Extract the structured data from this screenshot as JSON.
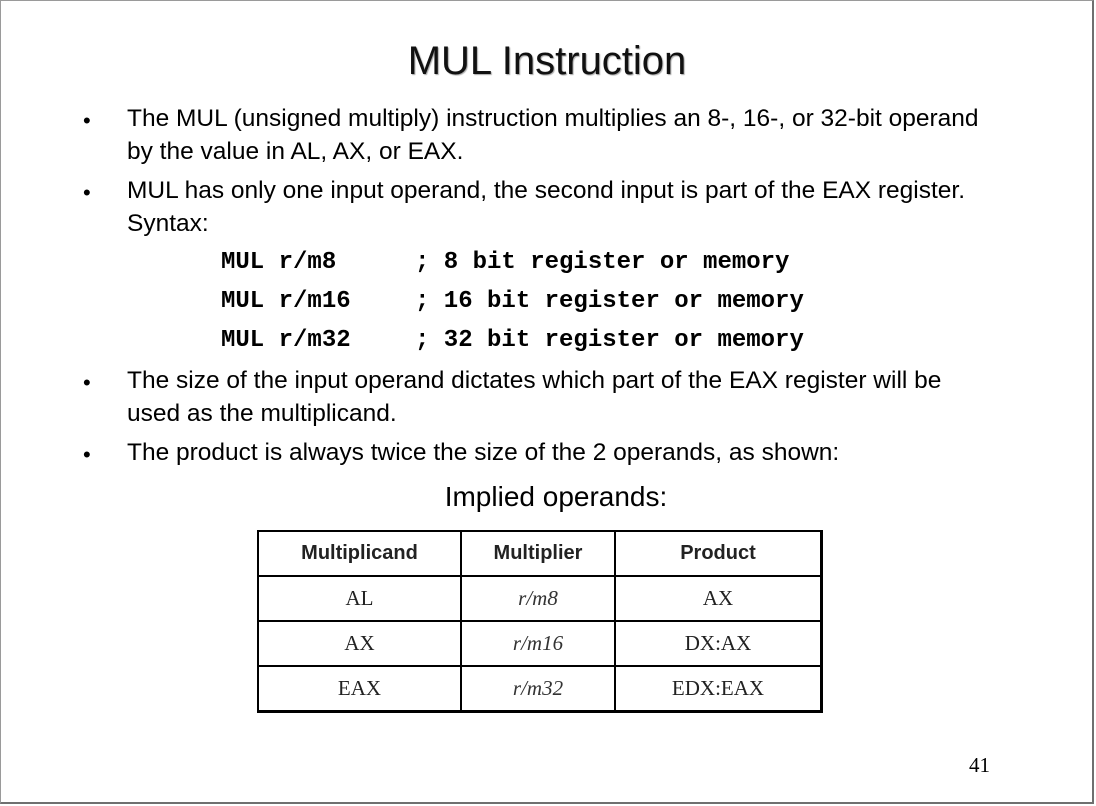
{
  "title": "MUL Instruction",
  "bullets": [
    {
      "marker": "•",
      "text": "The MUL (unsigned multiply) instruction multiplies an 8-, 16-, or 32-bit operand by the value in AL, AX, or EAX."
    },
    {
      "marker": "•",
      "text": "MUL has only one input operand, the second input is part of the EAX register.  Syntax:"
    },
    {
      "marker": "•",
      "text": "The size of the input operand dictates which part of the EAX register will be used as the multiplicand."
    },
    {
      "marker": "•",
      "text": "The product is always twice the size of the 2 operands, as shown:"
    }
  ],
  "syntax": [
    {
      "instr": "MUL r/m8",
      "comment": "; 8 bit register or memory"
    },
    {
      "instr": "MUL r/m16",
      "comment": "; 16 bit register or memory"
    },
    {
      "instr": "MUL r/m32",
      "comment": "; 32 bit register or memory"
    }
  ],
  "table_caption": "Implied operands:",
  "table": {
    "headers": [
      "Multiplicand",
      "Multiplier",
      "Product"
    ],
    "rows": [
      [
        "AL",
        "r/m8",
        "AX"
      ],
      [
        "AX",
        "r/m16",
        "DX:AX"
      ],
      [
        "EAX",
        "r/m32",
        "EDX:EAX"
      ]
    ]
  },
  "page_number": "41"
}
